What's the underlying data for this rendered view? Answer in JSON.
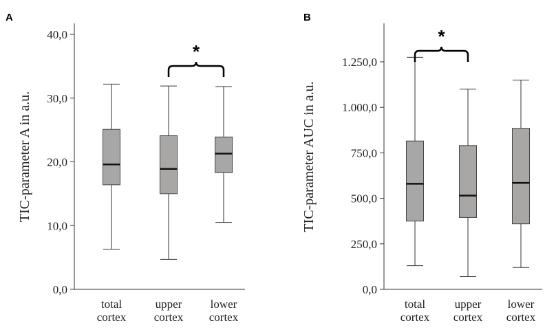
{
  "chart_data": [
    {
      "type": "box",
      "panel_label": "A",
      "ylabel": "TIC-parameter A in a.u.",
      "ylim": [
        0,
        40
      ],
      "yticks": [
        0,
        10,
        20,
        30,
        40
      ],
      "ytick_labels": [
        "0,0",
        "10,0",
        "20,0",
        "30,0",
        "40,0"
      ],
      "categories": [
        [
          "total",
          "cortex"
        ],
        [
          "upper",
          "cortex"
        ],
        [
          "lower",
          "cortex"
        ]
      ],
      "boxes": [
        {
          "min": 6.3,
          "q1": 16.4,
          "median": 19.6,
          "q3": 25.1,
          "max": 32.2
        },
        {
          "min": 4.7,
          "q1": 15.0,
          "median": 18.9,
          "q3": 24.1,
          "max": 31.9
        },
        {
          "min": 10.5,
          "q1": 18.3,
          "median": 21.3,
          "q3": 23.9,
          "max": 31.8
        }
      ],
      "significance": {
        "from": 1,
        "to": 2,
        "symbol": "*"
      }
    },
    {
      "type": "box",
      "panel_label": "B",
      "ylabel": "TIC-parameter AUC in a.u.",
      "ylim": [
        0,
        1400
      ],
      "yticks": [
        0,
        250,
        500,
        750,
        1000,
        1250
      ],
      "ytick_labels": [
        "0,0",
        "250,0",
        "500,0",
        "750,0",
        "1.000,0",
        "1.250,0"
      ],
      "categories": [
        [
          "total",
          "cortex"
        ],
        [
          "upper",
          "cortex"
        ],
        [
          "lower",
          "cortex"
        ]
      ],
      "boxes": [
        {
          "min": 130,
          "q1": 375,
          "median": 580,
          "q3": 815,
          "max": 1275
        },
        {
          "min": 70,
          "q1": 395,
          "median": 515,
          "q3": 790,
          "max": 1100
        },
        {
          "min": 120,
          "q1": 360,
          "median": 585,
          "q3": 885,
          "max": 1150
        }
      ],
      "significance": {
        "from": 0,
        "to": 1,
        "symbol": "*"
      }
    }
  ]
}
